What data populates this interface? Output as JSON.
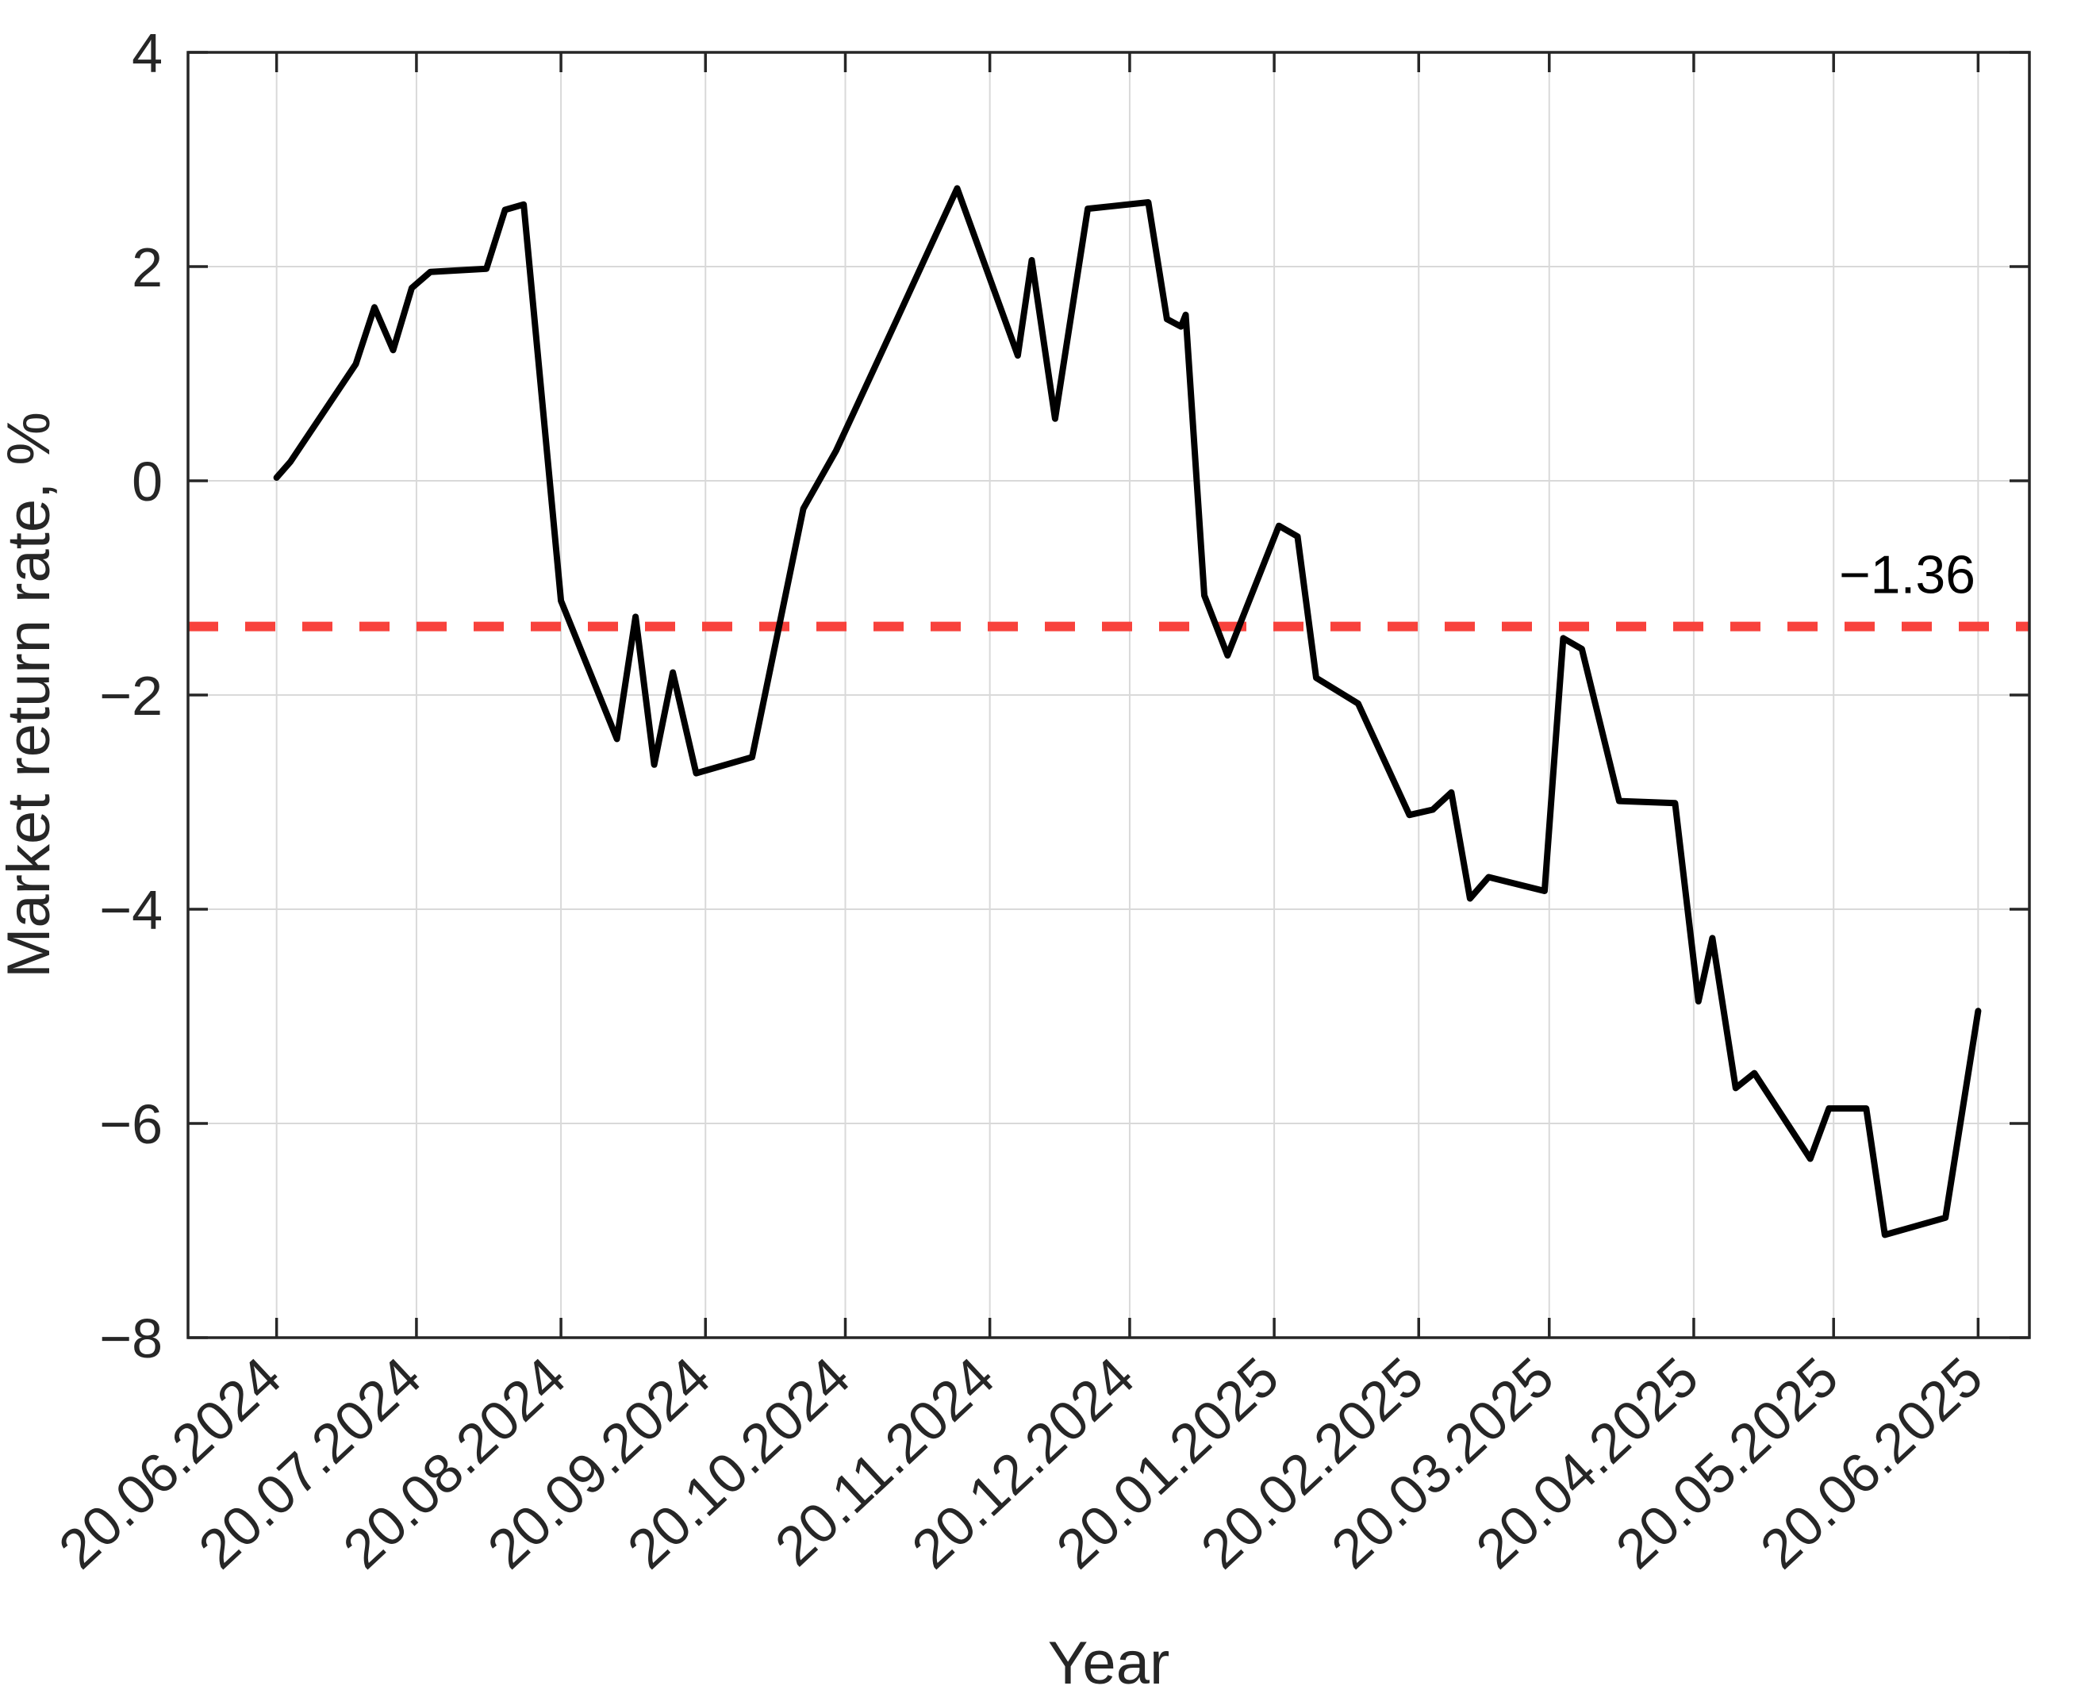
{
  "figure": {
    "background": "#ffffff"
  },
  "chart_data": {
    "type": "line",
    "title": "",
    "xlabel": "Year",
    "ylabel": "Market return rate, %",
    "grid": true,
    "legend": "none",
    "ylim": [
      -8,
      4
    ],
    "y_ticks": [
      -8,
      -6,
      -4,
      -2,
      0,
      2,
      4
    ],
    "y_tick_labels": [
      "−8",
      "−6",
      "−4",
      "−2",
      "0",
      "2",
      "4"
    ],
    "x_axis_range": [
      "01.06.2024",
      "01.07.2025"
    ],
    "x_tick_dates": [
      "20.06.2024",
      "20.07.2024",
      "20.08.2024",
      "20.09.2024",
      "20.10.2024",
      "20.11.2024",
      "20.12.2024",
      "20.01.2025",
      "20.02.2025",
      "20.03.2025",
      "20.04.2025",
      "20.05.2025",
      "20.06.2025"
    ],
    "x_tick_labels": [
      "20.06.2024",
      "20.07.2024",
      "20.08.2024",
      "20.09.2024",
      "20.10.2024",
      "20.11.2024",
      "20.12.2024",
      "20.01.2025",
      "20.02.2025",
      "20.03.2025",
      "20.04.2025",
      "20.05.2025",
      "20.06.2025"
    ],
    "threshold_line": {
      "value": -1.36,
      "label": "−1.36",
      "color": "#f8423c",
      "style": "dashed"
    },
    "series": [
      {
        "name": "market return rate",
        "color": "#000000",
        "points": [
          {
            "d": "20.06.2024",
            "v": 0.03
          },
          {
            "d": "23.06.2024",
            "v": 0.18
          },
          {
            "d": "07.07.2024",
            "v": 1.09
          },
          {
            "d": "11.07.2024",
            "v": 1.62
          },
          {
            "d": "15.07.2024",
            "v": 1.22
          },
          {
            "d": "19.07.2024",
            "v": 1.8
          },
          {
            "d": "23.07.2024",
            "v": 1.95
          },
          {
            "d": "04.08.2024",
            "v": 1.98
          },
          {
            "d": "08.08.2024",
            "v": 2.53
          },
          {
            "d": "12.08.2024",
            "v": 2.58
          },
          {
            "d": "20.08.2024",
            "v": -1.12
          },
          {
            "d": "01.09.2024",
            "v": -2.41
          },
          {
            "d": "05.09.2024",
            "v": -1.27
          },
          {
            "d": "09.09.2024",
            "v": -2.65
          },
          {
            "d": "13.09.2024",
            "v": -1.79
          },
          {
            "d": "18.09.2024",
            "v": -2.73
          },
          {
            "d": "30.09.2024",
            "v": -2.58
          },
          {
            "d": "11.10.2024",
            "v": -0.26
          },
          {
            "d": "18.10.2024",
            "v": 0.28
          },
          {
            "d": "31.10.2024",
            "v": 1.5
          },
          {
            "d": "13.11.2024",
            "v": 2.73
          },
          {
            "d": "26.11.2024",
            "v": 1.17
          },
          {
            "d": "29.11.2024",
            "v": 2.06
          },
          {
            "d": "04.12.2024",
            "v": 0.58
          },
          {
            "d": "11.12.2024",
            "v": 2.54
          },
          {
            "d": "24.12.2024",
            "v": 2.6
          },
          {
            "d": "28.12.2024",
            "v": 1.51
          },
          {
            "d": "31.12.2024",
            "v": 1.44
          },
          {
            "d": "01.01.2025",
            "v": 1.55
          },
          {
            "d": "05.01.2025",
            "v": -1.07
          },
          {
            "d": "10.01.2025",
            "v": -1.63
          },
          {
            "d": "21.01.2025",
            "v": -0.42
          },
          {
            "d": "25.01.2025",
            "v": -0.52
          },
          {
            "d": "29.01.2025",
            "v": -1.84
          },
          {
            "d": "07.02.2025",
            "v": -2.08
          },
          {
            "d": "18.02.2025",
            "v": -3.12
          },
          {
            "d": "23.02.2025",
            "v": -3.07
          },
          {
            "d": "27.02.2025",
            "v": -2.91
          },
          {
            "d": "03.03.2025",
            "v": -3.9
          },
          {
            "d": "07.03.2025",
            "v": -3.7
          },
          {
            "d": "19.03.2025",
            "v": -3.83
          },
          {
            "d": "23.03.2025",
            "v": -1.47
          },
          {
            "d": "27.03.2025",
            "v": -1.57
          },
          {
            "d": "04.04.2025",
            "v": -2.99
          },
          {
            "d": "16.04.2025",
            "v": -3.01
          },
          {
            "d": "21.04.2025",
            "v": -4.86
          },
          {
            "d": "24.04.2025",
            "v": -4.27
          },
          {
            "d": "29.04.2025",
            "v": -5.67
          },
          {
            "d": "03.05.2025",
            "v": -5.53
          },
          {
            "d": "15.05.2025",
            "v": -6.33
          },
          {
            "d": "19.05.2025",
            "v": -5.86
          },
          {
            "d": "27.05.2025",
            "v": -5.86
          },
          {
            "d": "31.05.2025",
            "v": -7.04
          },
          {
            "d": "13.06.2025",
            "v": -6.88
          },
          {
            "d": "20.06.2025",
            "v": -4.95
          }
        ]
      }
    ]
  }
}
